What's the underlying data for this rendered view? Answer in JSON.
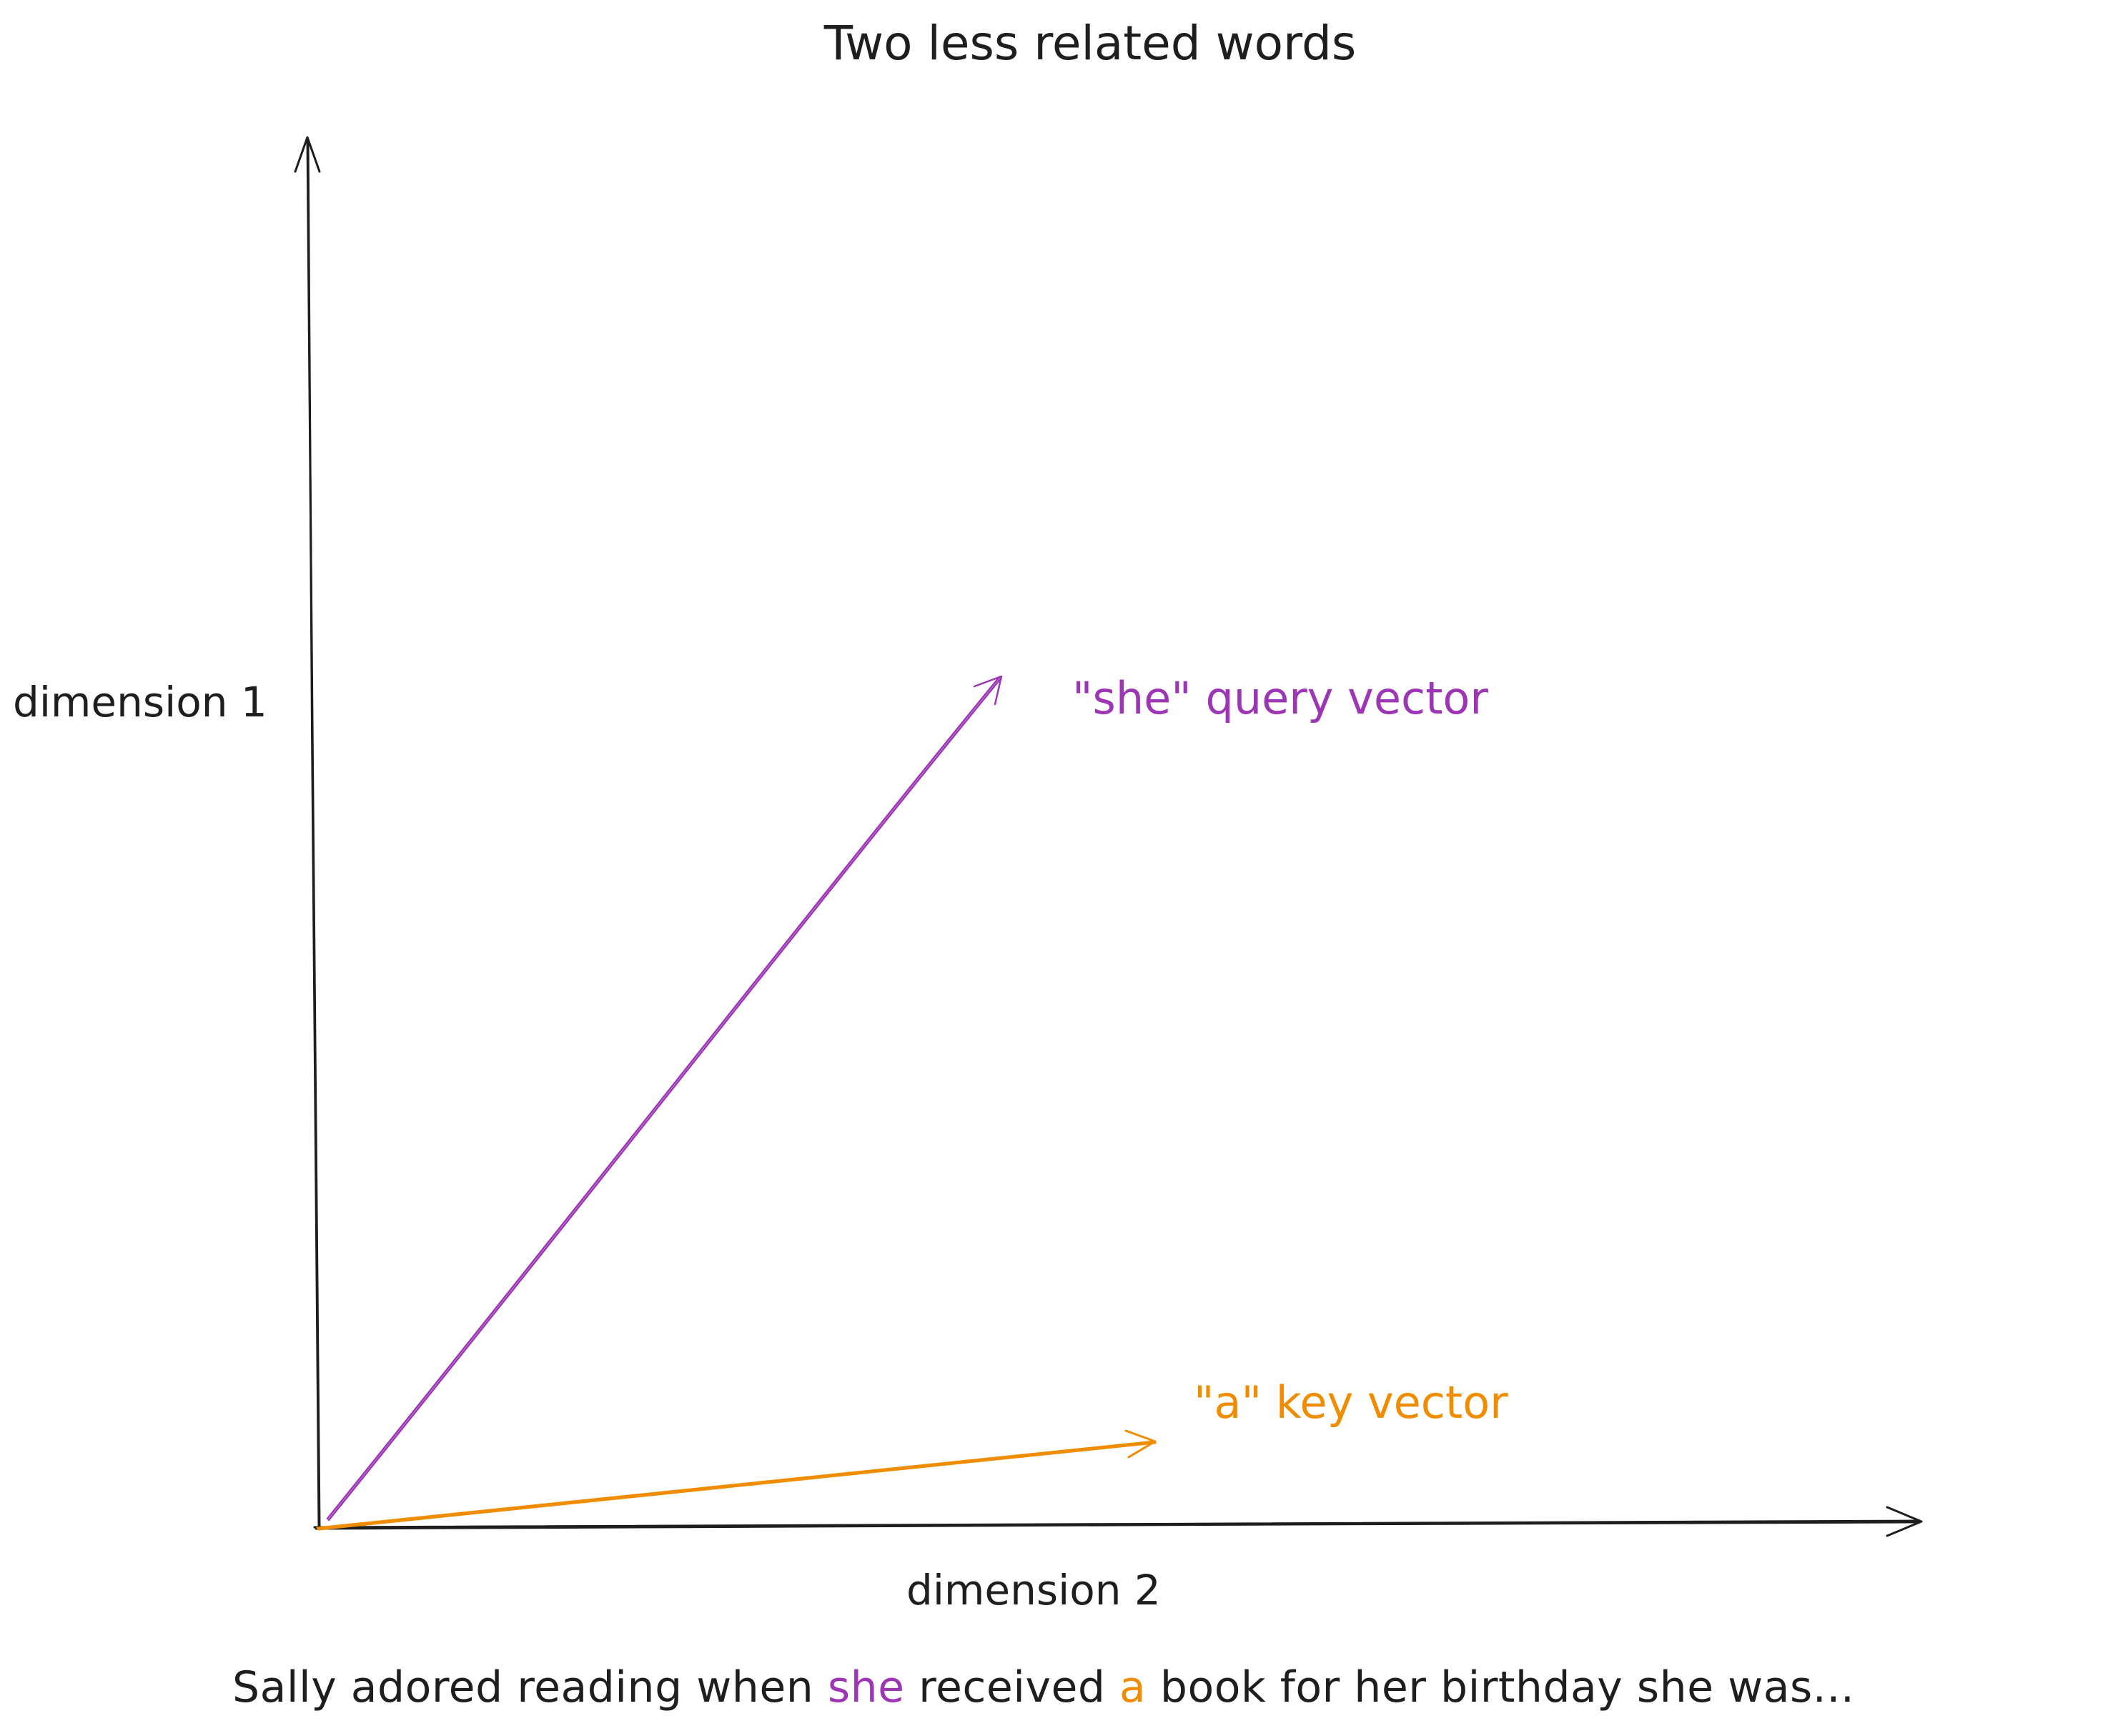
{
  "title": "Two less related words",
  "axes": {
    "y_label": "dimension 1",
    "x_label": "dimension 2"
  },
  "vectors": [
    {
      "name": "query",
      "label": "\"she\" query vector",
      "color": "#9c36b5"
    },
    {
      "name": "key",
      "label": "\"a\" key vector",
      "color": "#f08c00"
    }
  ],
  "sentence": {
    "before": "Sally adored reading when ",
    "highlight_1": "she",
    "middle": " received ",
    "highlight_2": "a",
    "after": " book for her birthday she was..."
  },
  "colors": {
    "ink": "#1e1e1e",
    "query": "#9c36b5",
    "key": "#f08c00"
  }
}
